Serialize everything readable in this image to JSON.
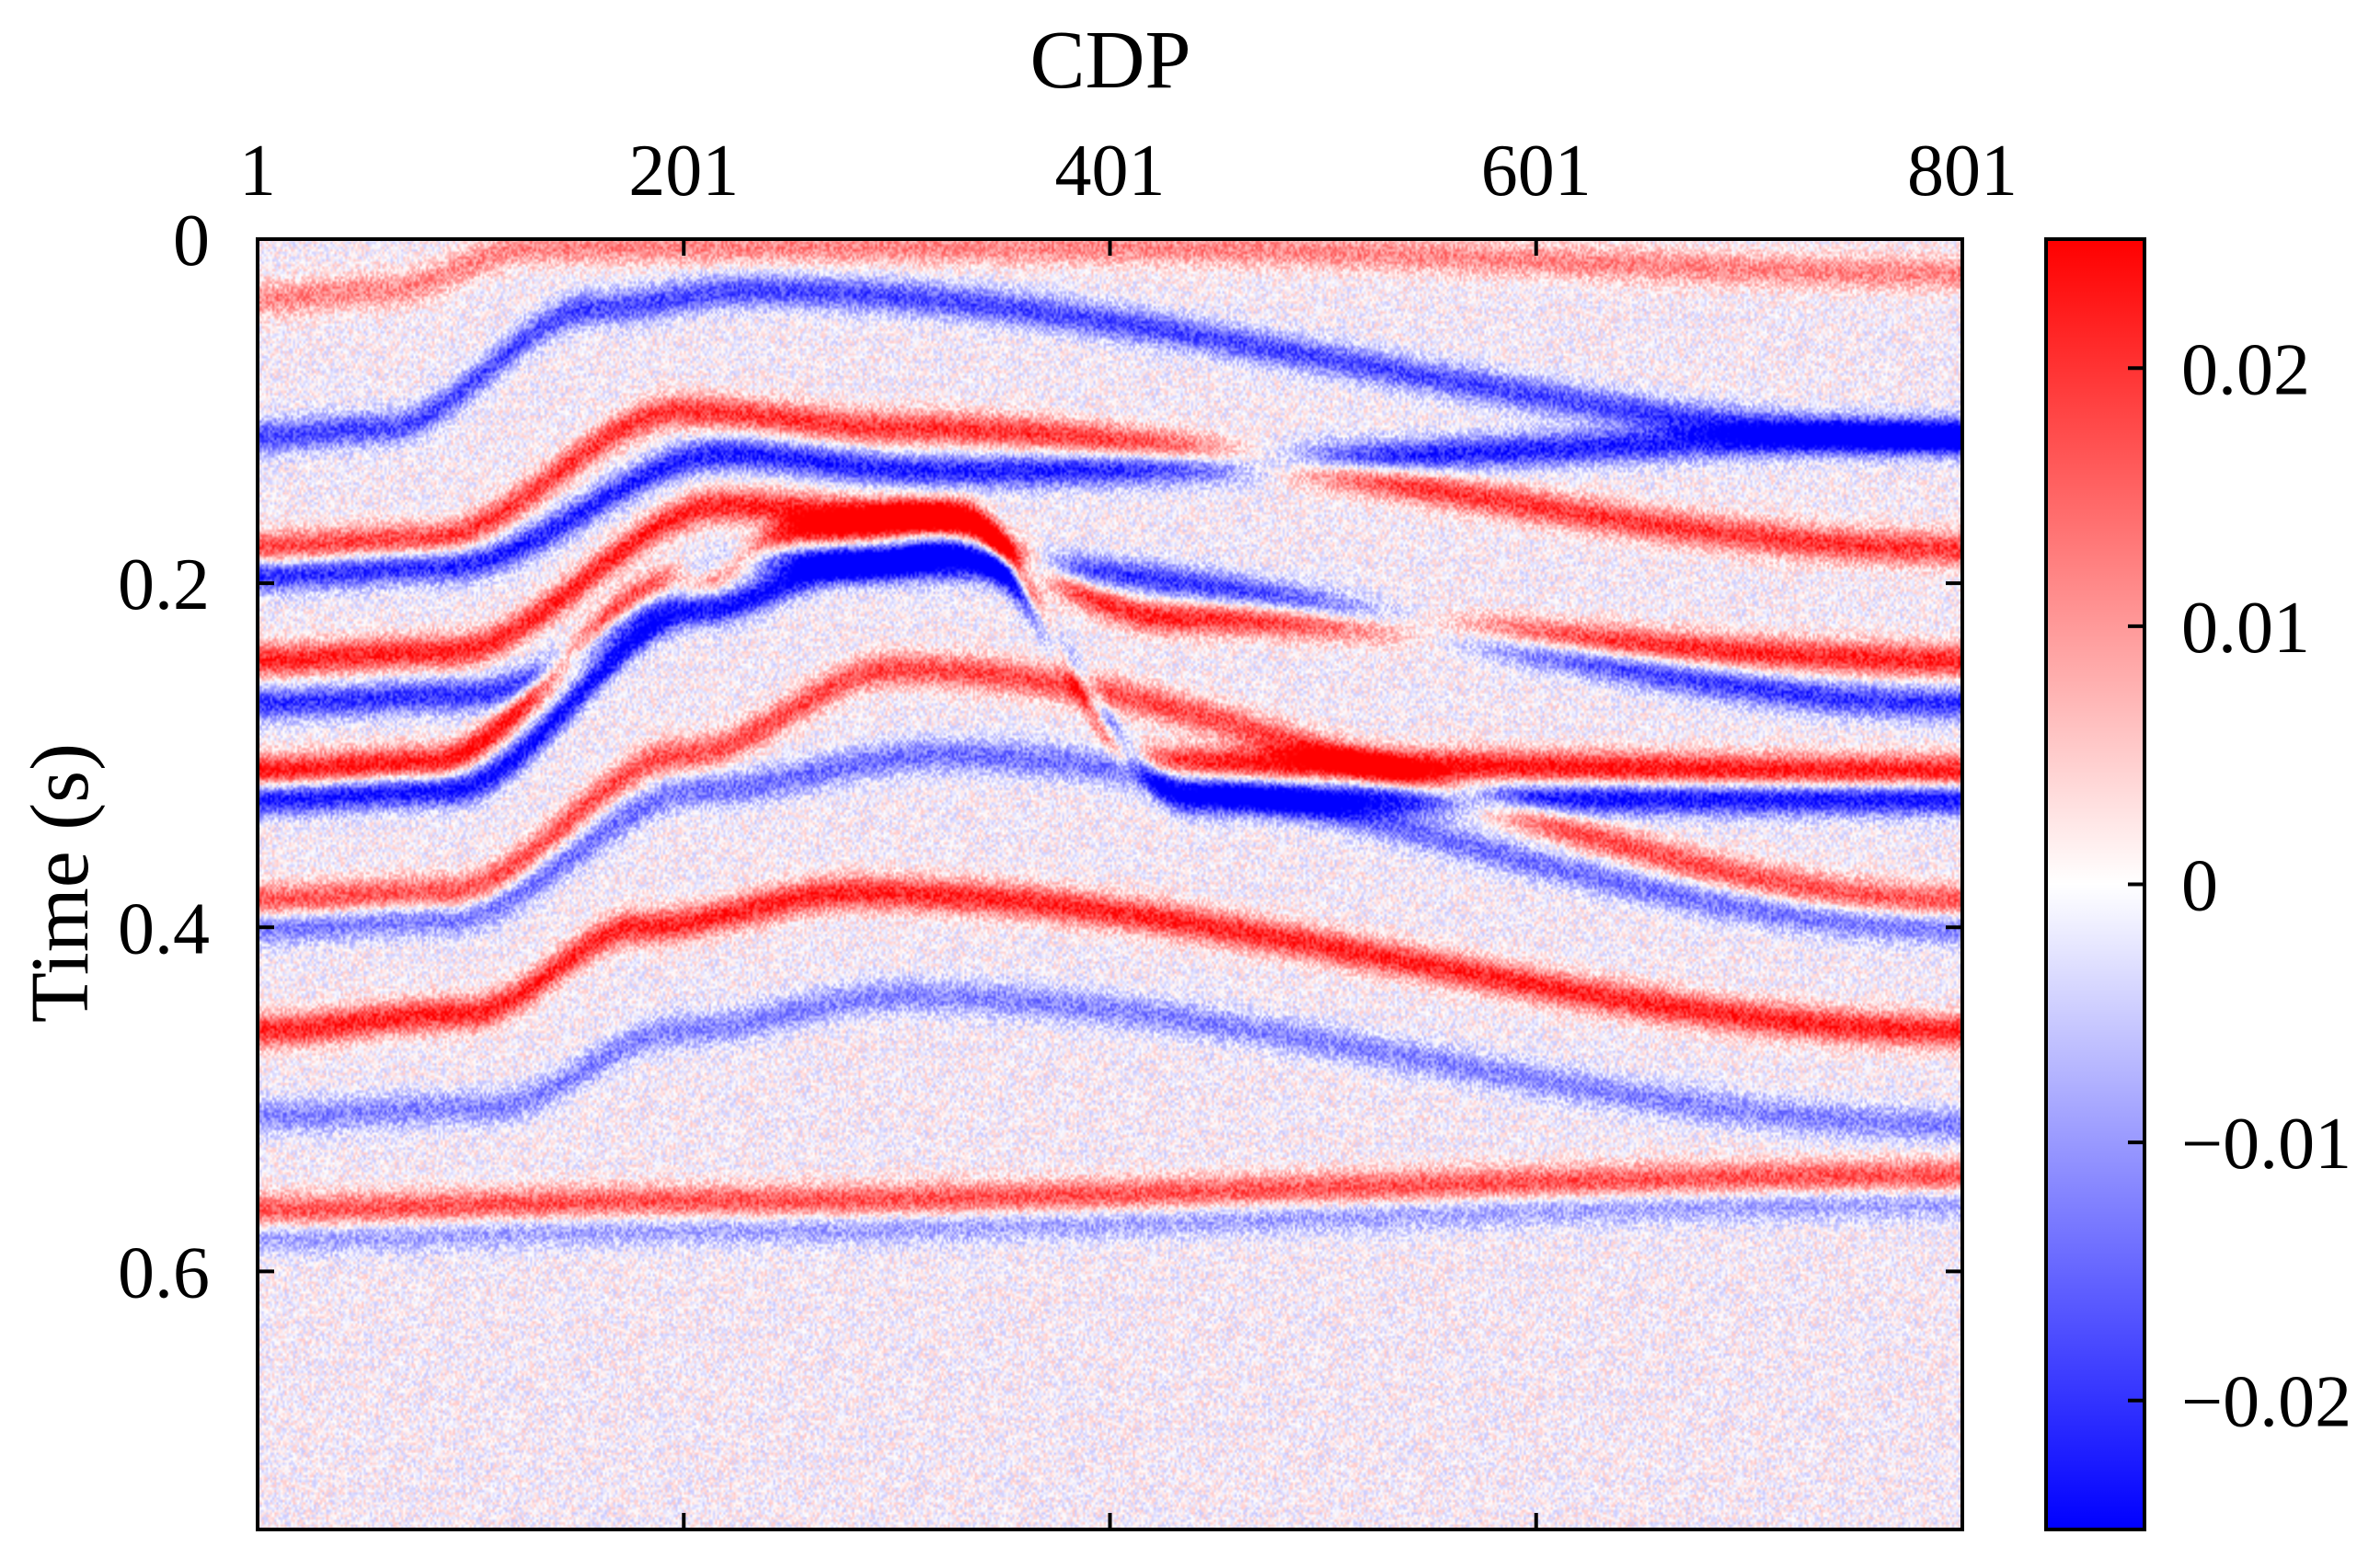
{
  "chart_data": {
    "type": "heatmap",
    "title": "",
    "xlabel": "CDP",
    "ylabel": "Time (s)",
    "x_axis_position": "top",
    "xlim": [
      1,
      801
    ],
    "ylim": [
      0,
      0.75
    ],
    "y_reversed": true,
    "grid": false,
    "x_ticks": [
      1,
      201,
      401,
      601,
      801
    ],
    "x_tick_labels": [
      "1",
      "201",
      "401",
      "601",
      "801"
    ],
    "y_ticks": [
      0,
      0.2,
      0.4,
      0.6
    ],
    "y_tick_labels": [
      "0",
      "0.2",
      "0.4",
      "0.6"
    ],
    "colorbar": {
      "position": "right",
      "range": [
        -0.025,
        0.025
      ],
      "ticks": [
        0.02,
        0.01,
        0,
        -0.01,
        -0.02
      ],
      "tick_labels": [
        "0.02",
        "0.01",
        "0",
        "−0.01",
        "−0.02"
      ],
      "colormap": [
        {
          "value": -0.025,
          "color": "#0000ff"
        },
        {
          "value": 0,
          "color": "#ffffff"
        },
        {
          "value": 0.025,
          "color": "#ff0000"
        }
      ]
    },
    "reflectors": [
      {
        "polarity": "positive",
        "amplitude": 0.012,
        "nodes": [
          [
            1,
            0.035
          ],
          [
            60,
            0.03
          ],
          [
            130,
            0.005
          ],
          [
            400,
            0.005
          ],
          [
            801,
            0.02
          ]
        ]
      },
      {
        "polarity": "negative",
        "amplitude": 0.018,
        "nodes": [
          [
            1,
            0.115
          ],
          [
            60,
            0.11
          ],
          [
            160,
            0.04
          ],
          [
            230,
            0.03
          ],
          [
            801,
            0.115
          ]
        ]
      },
      {
        "polarity": "positive",
        "amplitude": 0.02,
        "nodes": [
          [
            1,
            0.18
          ],
          [
            80,
            0.175
          ],
          [
            200,
            0.1
          ],
          [
            300,
            0.11
          ],
          [
            801,
            0.18
          ]
        ]
      },
      {
        "polarity": "negative",
        "amplitude": 0.022,
        "nodes": [
          [
            1,
            0.195
          ],
          [
            90,
            0.19
          ],
          [
            220,
            0.125
          ],
          [
            320,
            0.135
          ],
          [
            801,
            0.115
          ]
        ]
      },
      {
        "polarity": "positive",
        "amplitude": 0.022,
        "nodes": [
          [
            1,
            0.245
          ],
          [
            90,
            0.24
          ],
          [
            220,
            0.155
          ],
          [
            300,
            0.16
          ],
          [
            430,
            0.22
          ],
          [
            801,
            0.245
          ]
        ]
      },
      {
        "polarity": "negative",
        "amplitude": 0.02,
        "nodes": [
          [
            1,
            0.27
          ],
          [
            100,
            0.265
          ],
          [
            240,
            0.185
          ],
          [
            330,
            0.19
          ],
          [
            801,
            0.27
          ]
        ]
      },
      {
        "polarity": "positive",
        "amplitude": 0.025,
        "nodes": [
          [
            1,
            0.31
          ],
          [
            80,
            0.305
          ],
          [
            200,
            0.2
          ],
          [
            260,
            0.17
          ],
          [
            330,
            0.16
          ],
          [
            420,
            0.305
          ],
          [
            801,
            0.31
          ]
        ]
      },
      {
        "polarity": "negative",
        "amplitude": 0.025,
        "nodes": [
          [
            1,
            0.325
          ],
          [
            90,
            0.32
          ],
          [
            210,
            0.215
          ],
          [
            280,
            0.19
          ],
          [
            330,
            0.18
          ],
          [
            440,
            0.325
          ],
          [
            801,
            0.325
          ]
        ]
      },
      {
        "polarity": "positive",
        "amplitude": 0.018,
        "nodes": [
          [
            1,
            0.385
          ],
          [
            90,
            0.38
          ],
          [
            200,
            0.3
          ],
          [
            300,
            0.25
          ],
          [
            801,
            0.385
          ]
        ]
      },
      {
        "polarity": "negative",
        "amplitude": 0.014,
        "nodes": [
          [
            1,
            0.4
          ],
          [
            90,
            0.395
          ],
          [
            210,
            0.32
          ],
          [
            320,
            0.3
          ],
          [
            801,
            0.4
          ]
        ]
      },
      {
        "polarity": "positive",
        "amplitude": 0.022,
        "nodes": [
          [
            1,
            0.46
          ],
          [
            100,
            0.45
          ],
          [
            180,
            0.4
          ],
          [
            280,
            0.38
          ],
          [
            801,
            0.46
          ]
        ]
      },
      {
        "polarity": "negative",
        "amplitude": 0.012,
        "nodes": [
          [
            1,
            0.51
          ],
          [
            110,
            0.505
          ],
          [
            200,
            0.46
          ],
          [
            300,
            0.44
          ],
          [
            801,
            0.515
          ]
        ]
      },
      {
        "polarity": "positive",
        "amplitude": 0.018,
        "nodes": [
          [
            1,
            0.565
          ],
          [
            200,
            0.56
          ],
          [
            801,
            0.545
          ]
        ]
      },
      {
        "polarity": "negative",
        "amplitude": 0.01,
        "nodes": [
          [
            1,
            0.58
          ],
          [
            200,
            0.575
          ],
          [
            801,
            0.56
          ]
        ]
      }
    ]
  }
}
